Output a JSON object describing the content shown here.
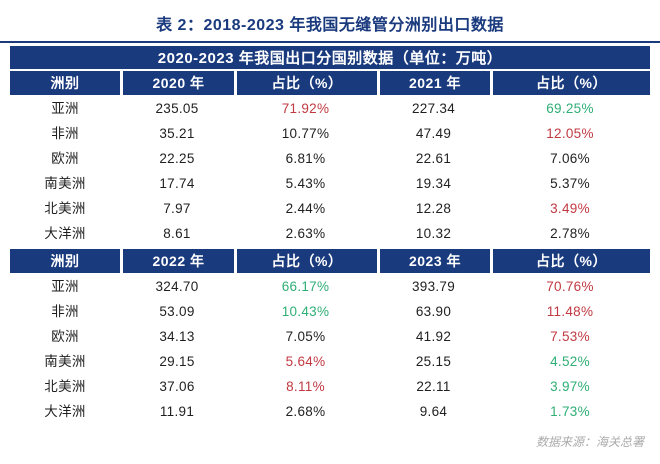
{
  "page": {
    "title": "表 2：2018-2023 年我国无缝管分洲别出口数据",
    "source_note": "数据来源：海关总署"
  },
  "colors": {
    "navy": "#1A3A7E",
    "red": "#C13A42",
    "green": "#2FAE75",
    "text": "#1F1F1F",
    "muted_gray": "#ABABAB"
  },
  "table": {
    "main_header": "2020-2023 年我国出口分国别数据（单位：万吨）",
    "sections": [
      {
        "columns": [
          "洲别",
          "2020 年",
          "占比（%）",
          "2021 年",
          "占比（%）"
        ],
        "rows": [
          {
            "cells": [
              "亚洲",
              "235.05",
              "71.92%",
              "227.34",
              "69.25%"
            ],
            "colors": [
              "text",
              "text",
              "red",
              "text",
              "green"
            ]
          },
          {
            "cells": [
              "非洲",
              "35.21",
              "10.77%",
              "47.49",
              "12.05%"
            ],
            "colors": [
              "text",
              "text",
              "text",
              "text",
              "red"
            ]
          },
          {
            "cells": [
              "欧洲",
              "22.25",
              "6.81%",
              "22.61",
              "7.06%"
            ],
            "colors": [
              "text",
              "text",
              "text",
              "text",
              "text"
            ]
          },
          {
            "cells": [
              "南美洲",
              "17.74",
              "5.43%",
              "19.34",
              "5.37%"
            ],
            "colors": [
              "text",
              "text",
              "text",
              "text",
              "text"
            ]
          },
          {
            "cells": [
              "北美洲",
              "7.97",
              "2.44%",
              "12.28",
              "3.49%"
            ],
            "colors": [
              "text",
              "text",
              "text",
              "text",
              "red"
            ]
          },
          {
            "cells": [
              "大洋洲",
              "8.61",
              "2.63%",
              "10.32",
              "2.78%"
            ],
            "colors": [
              "text",
              "text",
              "text",
              "text",
              "text"
            ]
          }
        ]
      },
      {
        "columns": [
          "洲别",
          "2022 年",
          "占比（%）",
          "2023 年",
          "占比（%）"
        ],
        "rows": [
          {
            "cells": [
              "亚洲",
              "324.70",
              "66.17%",
              "393.79",
              "70.76%"
            ],
            "colors": [
              "text",
              "text",
              "green",
              "text",
              "red"
            ]
          },
          {
            "cells": [
              "非洲",
              "53.09",
              "10.43%",
              "63.90",
              "11.48%"
            ],
            "colors": [
              "text",
              "text",
              "green",
              "text",
              "red"
            ]
          },
          {
            "cells": [
              "欧洲",
              "34.13",
              "7.05%",
              "41.92",
              "7.53%"
            ],
            "colors": [
              "text",
              "text",
              "text",
              "text",
              "red"
            ]
          },
          {
            "cells": [
              "南美洲",
              "29.15",
              "5.64%",
              "25.15",
              "4.52%"
            ],
            "colors": [
              "text",
              "text",
              "red",
              "text",
              "green"
            ]
          },
          {
            "cells": [
              "北美洲",
              "37.06",
              "8.11%",
              "22.11",
              "3.97%"
            ],
            "colors": [
              "text",
              "text",
              "red",
              "text",
              "green"
            ]
          },
          {
            "cells": [
              "大洋洲",
              "11.91",
              "2.68%",
              "9.64",
              "1.73%"
            ],
            "colors": [
              "text",
              "text",
              "text",
              "text",
              "green"
            ]
          }
        ]
      }
    ]
  },
  "chart_data": {
    "type": "table",
    "title": "2020-2023 年我国出口分国别数据（单位：万吨）",
    "figure_caption": "表 2：2018-2023 年我国无缝管分洲别出口数据",
    "unit": "万吨",
    "categories": [
      "亚洲",
      "非洲",
      "欧洲",
      "南美洲",
      "北美洲",
      "大洋洲"
    ],
    "series": [
      {
        "name": "2020 年 出口量",
        "values": [
          235.05,
          35.21,
          22.25,
          17.74,
          7.97,
          8.61
        ]
      },
      {
        "name": "2020 年 占比(%)",
        "values": [
          71.92,
          10.77,
          6.81,
          5.43,
          2.44,
          2.63
        ]
      },
      {
        "name": "2021 年 出口量",
        "values": [
          227.34,
          47.49,
          22.61,
          19.34,
          12.28,
          10.32
        ]
      },
      {
        "name": "2021 年 占比(%)",
        "values": [
          69.25,
          12.05,
          7.06,
          5.37,
          3.49,
          2.78
        ]
      },
      {
        "name": "2022 年 出口量",
        "values": [
          324.7,
          53.09,
          34.13,
          29.15,
          37.06,
          11.91
        ]
      },
      {
        "name": "2022 年 占比(%)",
        "values": [
          66.17,
          10.43,
          7.05,
          5.64,
          8.11,
          2.68
        ]
      },
      {
        "name": "2023 年 出口量",
        "values": [
          393.79,
          63.9,
          41.92,
          25.15,
          22.11,
          9.64
        ]
      },
      {
        "name": "2023 年 占比(%)",
        "values": [
          70.76,
          11.48,
          7.53,
          4.52,
          3.97,
          1.73
        ]
      }
    ],
    "source": "数据来源：海关总署"
  }
}
